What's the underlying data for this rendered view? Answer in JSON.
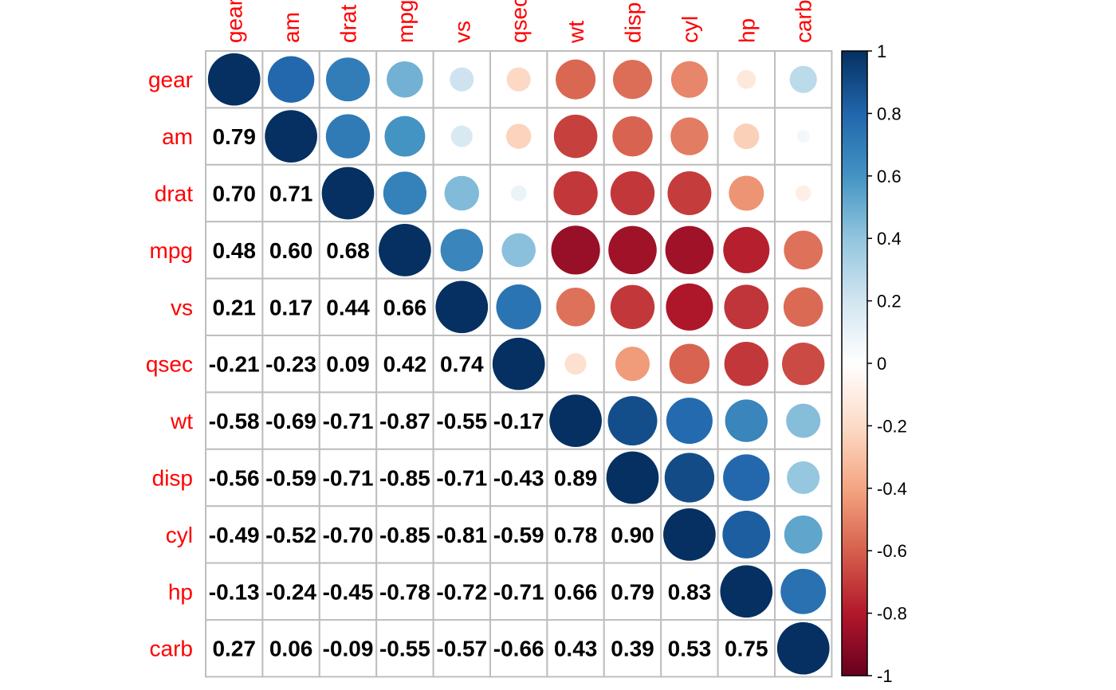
{
  "chart_data": {
    "type": "heatmap",
    "style": "mixed correlation plot: circles in upper triangle, numbers in lower triangle",
    "variables": [
      "gear",
      "am",
      "drat",
      "mpg",
      "vs",
      "qsec",
      "wt",
      "disp",
      "cyl",
      "hp",
      "carb"
    ],
    "matrix": [
      [
        1.0,
        0.79,
        0.7,
        0.48,
        0.21,
        -0.21,
        -0.58,
        -0.56,
        -0.49,
        -0.13,
        0.27
      ],
      [
        0.79,
        1.0,
        0.71,
        0.6,
        0.17,
        -0.23,
        -0.69,
        -0.59,
        -0.52,
        -0.24,
        0.06
      ],
      [
        0.7,
        0.71,
        1.0,
        0.68,
        0.44,
        0.09,
        -0.71,
        -0.71,
        -0.7,
        -0.45,
        -0.09
      ],
      [
        0.48,
        0.6,
        0.68,
        1.0,
        0.66,
        0.42,
        -0.87,
        -0.85,
        -0.85,
        -0.78,
        -0.55
      ],
      [
        0.21,
        0.17,
        0.44,
        0.66,
        1.0,
        0.74,
        -0.55,
        -0.71,
        -0.81,
        -0.72,
        -0.57
      ],
      [
        -0.21,
        -0.23,
        0.09,
        0.42,
        0.74,
        1.0,
        -0.17,
        -0.43,
        -0.59,
        -0.71,
        -0.66
      ],
      [
        -0.58,
        -0.69,
        -0.71,
        -0.87,
        -0.55,
        -0.17,
        1.0,
        0.89,
        0.78,
        0.66,
        0.43
      ],
      [
        -0.56,
        -0.59,
        -0.71,
        -0.85,
        -0.71,
        -0.43,
        0.89,
        1.0,
        0.9,
        0.79,
        0.39
      ],
      [
        -0.49,
        -0.52,
        -0.7,
        -0.85,
        -0.81,
        -0.59,
        0.78,
        0.9,
        1.0,
        0.83,
        0.53
      ],
      [
        -0.13,
        -0.24,
        -0.45,
        -0.78,
        -0.72,
        -0.71,
        0.66,
        0.79,
        0.83,
        1.0,
        0.75
      ],
      [
        0.27,
        0.06,
        -0.09,
        -0.55,
        -0.57,
        -0.66,
        0.43,
        0.39,
        0.53,
        0.75,
        1.0
      ]
    ],
    "colorbar": {
      "ticks": [
        "1",
        "0.8",
        "0.6",
        "0.4",
        "0.2",
        "0",
        "-0.2",
        "-0.4",
        "-0.6",
        "-0.8",
        "-1"
      ],
      "range": [
        -1,
        1
      ],
      "colors": [
        "#67001F",
        "#B2182B",
        "#D6604D",
        "#F4A582",
        "#FDDBC7",
        "#FFFFFF",
        "#D1E5F0",
        "#92C5DE",
        "#4393C3",
        "#2166AC",
        "#053061"
      ]
    },
    "label_color": "#ff0000",
    "grid_color": "#bebebe"
  }
}
